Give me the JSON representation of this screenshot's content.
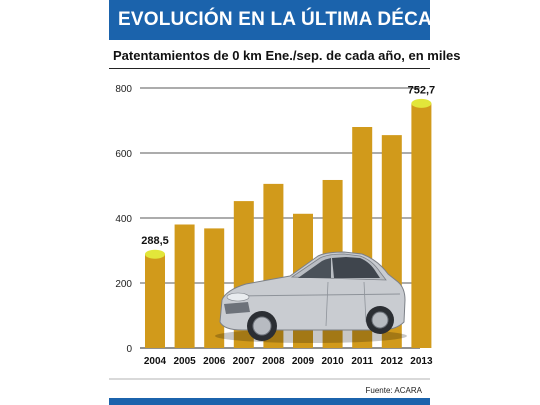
{
  "header": {
    "title": "EVOLUCIÓN EN LA ÚLTIMA DÉCADA",
    "subtitle": "Patentamientos de 0 km Ene./sep. de cada año, en miles"
  },
  "footer": {
    "source": "Fuente: ACARA"
  },
  "colors": {
    "bar": "#d19a1b",
    "highlight": "#e2e63a",
    "banner": "#1b63ac",
    "grid": "#222222"
  },
  "chart_data": {
    "type": "bar",
    "categories": [
      "2004",
      "2005",
      "2006",
      "2007",
      "2008",
      "2009",
      "2010",
      "2011",
      "2012",
      "2013"
    ],
    "values": [
      288.5,
      380,
      368,
      452,
      505,
      413,
      517,
      680,
      655,
      752.7
    ],
    "ylim": [
      0,
      800
    ],
    "yticks": [
      0,
      200,
      400,
      600,
      800
    ],
    "grid": true,
    "data_labels": [
      {
        "index": 0,
        "text": "288,5"
      },
      {
        "index": 9,
        "text": "752,7"
      }
    ],
    "highlighted": [
      0,
      9
    ]
  }
}
